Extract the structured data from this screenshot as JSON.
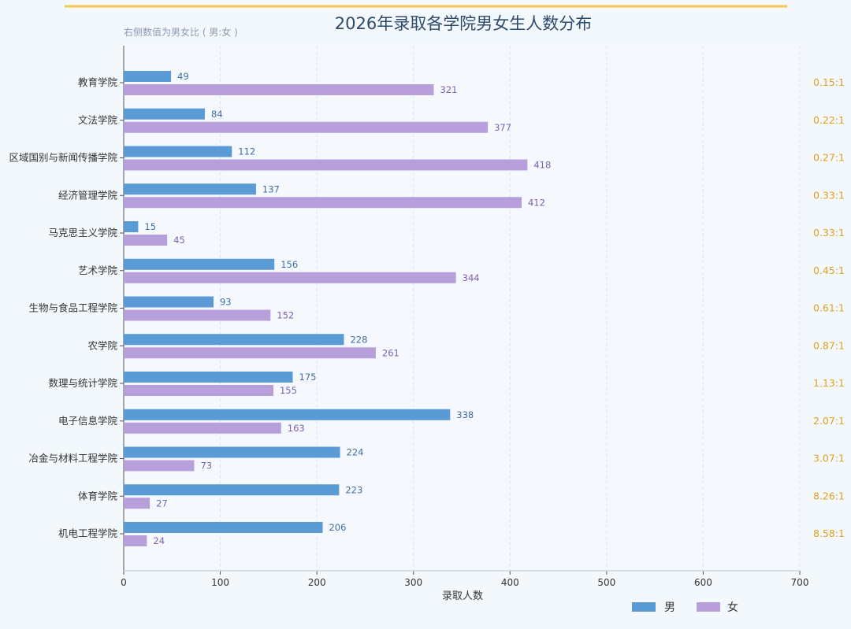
{
  "chart_data": {
    "type": "bar",
    "orientation": "horizontal",
    "title": "2026年录取各学院男女生人数分布",
    "subtitle": "右侧数值为男女比 ( 男:女 )",
    "xlabel": "录取人数",
    "ylabel": "",
    "xlim": [
      0,
      700
    ],
    "xticks": [
      "0",
      "100",
      "200",
      "300",
      "400",
      "500",
      "600",
      "700"
    ],
    "grid": true,
    "legend_position": "bottom-right",
    "categories": [
      "教育学院",
      "文法学院",
      "区域国别与新闻传播学院",
      "经济管理学院",
      "马克思主义学院",
      "艺术学院",
      "生物与食品工程学院",
      "农学院",
      "数理与统计学院",
      "电子信息学院",
      "冶金与材料工程学院",
      "体育学院",
      "机电工程学院"
    ],
    "series": [
      {
        "name": "男",
        "color": "#5b9bd5",
        "values": [
          49,
          84,
          112,
          137,
          15,
          156,
          93,
          228,
          175,
          338,
          224,
          223,
          206
        ]
      },
      {
        "name": "女",
        "color": "#b79fdc",
        "values": [
          321,
          377,
          418,
          412,
          45,
          344,
          152,
          261,
          155,
          163,
          73,
          27,
          24
        ]
      }
    ],
    "ratios": [
      "0.15:1",
      "0.22:1",
      "0.27:1",
      "0.33:1",
      "0.33:1",
      "0.45:1",
      "0.61:1",
      "0.87:1",
      "1.13:1",
      "2.07:1",
      "3.07:1",
      "8.26:1",
      "8.58:1"
    ],
    "colors": {
      "male_label": "#3f6f9f",
      "female_label": "#7d5fb0",
      "ratio": "#e0a020",
      "title": "#2e4a6b",
      "accent_line": "#f2c94c"
    }
  }
}
